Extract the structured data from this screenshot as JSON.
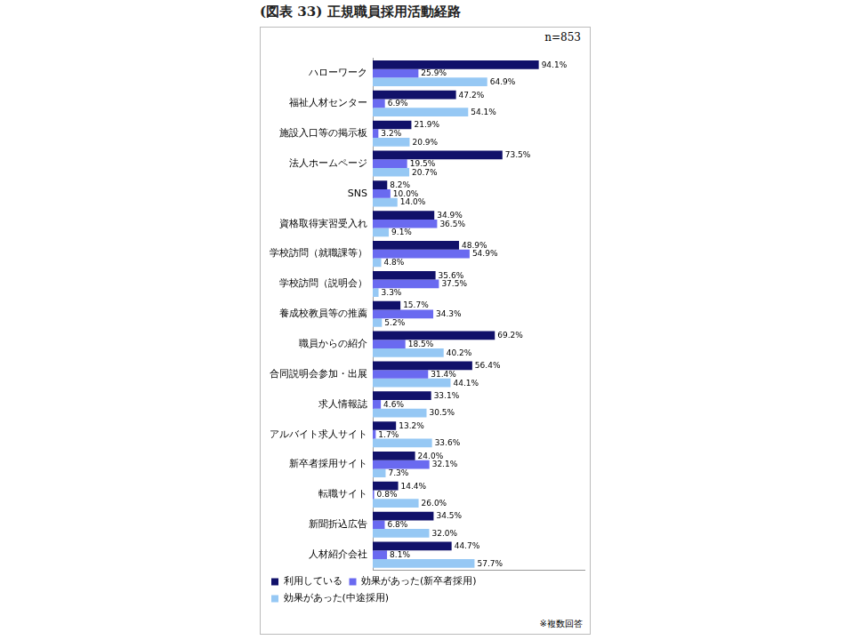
{
  "chart_data": {
    "type": "bar",
    "title": "(図表 33) 正規職員採用活動経路",
    "annotations": [
      "n=853",
      "※複数回答"
    ],
    "orientation": "horizontal",
    "grid": false,
    "legend": "bottom-left",
    "data_labels": true,
    "tick_labels": "y",
    "xlim": [
      0,
      120
    ],
    "categories": [
      "ハローワーク",
      "福祉人材センター",
      "施設入口等の掲示板",
      "法人ホームページ",
      "SNS",
      "資格取得実習受入れ",
      "学校訪問（就職課等）",
      "学校訪問（説明会）",
      "養成校教員等の推薦",
      "職員からの紹介",
      "合同説明会参加・出展",
      "求人情報誌",
      "アルバイト求人サイト",
      "新卒者採用サイト",
      "転職サイト",
      "新聞折込広告",
      "人材紹介会社"
    ],
    "series": [
      {
        "name": "利用している",
        "color": "#11116a",
        "values": [
          94.1,
          47.2,
          21.9,
          73.5,
          8.2,
          34.9,
          48.9,
          35.6,
          15.7,
          69.2,
          56.4,
          33.1,
          13.2,
          24.0,
          14.4,
          34.5,
          44.7
        ],
        "value_labels": [
          "94.1%",
          "47.2%",
          "21.9%",
          "73.5%",
          "8.2%",
          "34.9%",
          "48.9%",
          "35.6%",
          "15.7%",
          "69.2%",
          "56.4%",
          "33.1%",
          "13.2%",
          "24.0%",
          "14.4%",
          "34.5%",
          "44.7%"
        ]
      },
      {
        "name": "効果があった(新卒者採用)",
        "color": "#6a6af0",
        "values": [
          25.9,
          6.9,
          3.2,
          19.5,
          10.0,
          36.5,
          54.9,
          37.5,
          34.3,
          18.5,
          31.4,
          4.6,
          1.7,
          32.1,
          0.8,
          6.8,
          8.1
        ],
        "value_labels": [
          "25.9%",
          "6.9%",
          "3.2%",
          "19.5%",
          "10.0%",
          "36.5%",
          "54.9%",
          "37.5%",
          "34.3%",
          "18.5%",
          "31.4%",
          "4.6%",
          "1.7%",
          "32.1%",
          "0.8%",
          "6.8%",
          "8.1%"
        ]
      },
      {
        "name": "効果があった(中途採用)",
        "color": "#96c8f4",
        "values": [
          64.9,
          54.1,
          20.9,
          20.7,
          14.0,
          9.1,
          4.8,
          3.3,
          5.2,
          40.2,
          44.1,
          30.5,
          33.6,
          7.3,
          26.0,
          32.0,
          57.7
        ],
        "value_labels": [
          "64.9%",
          "54.1%",
          "20.9%",
          "20.7%",
          "14.0%",
          "9.1%",
          "4.8%",
          "3.3%",
          "5.2%",
          "40.2%",
          "44.1%",
          "30.5%",
          "33.6%",
          "7.3%",
          "26.0%",
          "32.0%",
          "57.7%"
        ]
      }
    ]
  }
}
